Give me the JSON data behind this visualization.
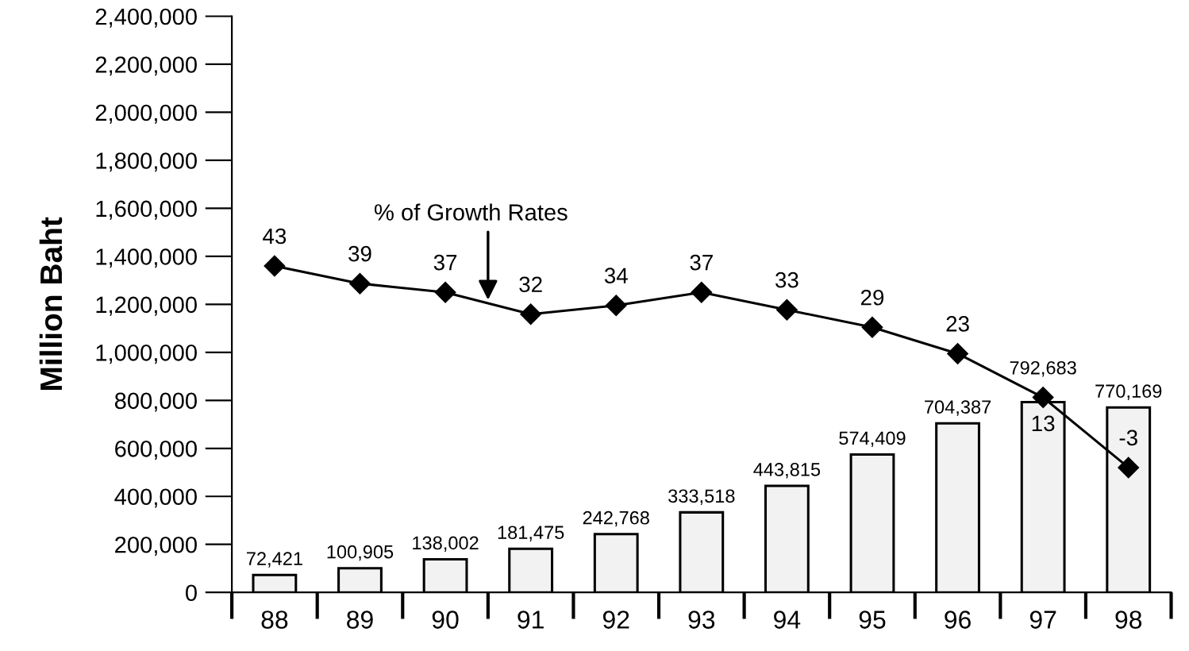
{
  "chart_data": {
    "type": "bar",
    "ylabel": "Million Baht",
    "categories": [
      "88",
      "89",
      "90",
      "91",
      "92",
      "93",
      "94",
      "95",
      "96",
      "97",
      "98"
    ],
    "series": [
      {
        "color": "#f2f2f2",
        "values": [
          72421,
          100905,
          138002,
          181475,
          242768,
          333518,
          443815,
          574409,
          704387,
          792683,
          770169
        ],
        "value_labels": [
          "72,421",
          "100,905",
          "138,002",
          "181,475",
          "242,768",
          "333,518",
          "443,815",
          "574,409",
          "704,387",
          "792,683",
          "770,169"
        ]
      },
      {
        "type": "line",
        "axis": "y2",
        "color": "#000000",
        "marker": "diamond",
        "values": [
          43,
          39,
          37,
          32,
          34,
          37,
          33,
          29,
          23,
          13,
          -3
        ],
        "data_labels": true
      }
    ],
    "ylim": [
      0,
      2400000
    ],
    "yticks": [
      {
        "value": 0,
        "label": "0"
      },
      {
        "value": 200000,
        "label": "200,000"
      },
      {
        "value": 400000,
        "label": "400,000"
      },
      {
        "value": 600000,
        "label": "600,000"
      },
      {
        "value": 800000,
        "label": "800,000"
      },
      {
        "value": 1000000,
        "label": "1,000,000"
      },
      {
        "value": 1200000,
        "label": "1,200,000"
      },
      {
        "value": 1400000,
        "label": "1,400,000"
      },
      {
        "value": 1600000,
        "label": "1,600,000"
      },
      {
        "value": 1800000,
        "label": "1,800,000"
      },
      {
        "value": 2000000,
        "label": "2,000,000"
      },
      {
        "value": 2200000,
        "label": "2,200,000"
      },
      {
        "value": 2400000,
        "label": "2,400,000"
      }
    ],
    "y2lim": [
      -31.5,
      100
    ],
    "annotations": [
      "% of Growth Rates"
    ],
    "grid": false,
    "legend": false
  }
}
